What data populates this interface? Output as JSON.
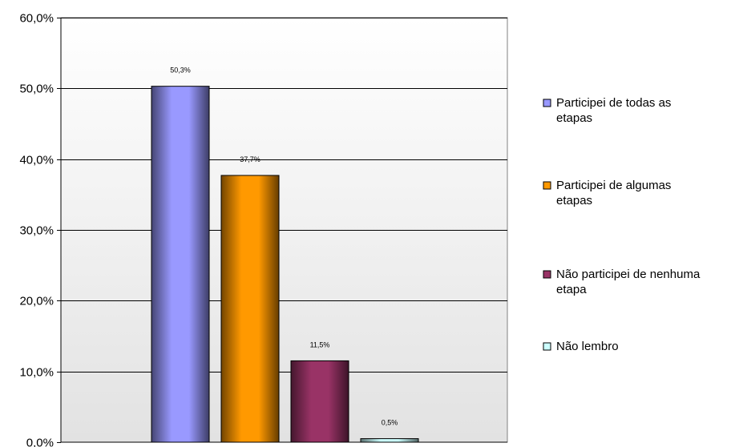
{
  "chart_data": {
    "type": "bar",
    "title": "",
    "xlabel": "",
    "ylabel": "",
    "ylim": [
      0,
      60
    ],
    "yticks": [
      0,
      10,
      20,
      30,
      40,
      50,
      60
    ],
    "ytick_labels": [
      "0,0%",
      "10,0%",
      "20,0%",
      "30,0%",
      "40,0%",
      "50,0%",
      "60,0%"
    ],
    "grid": true,
    "legend_position": "right",
    "series": [
      {
        "name": "Participei de todas as etapas",
        "legend_lines": [
          "Participei de todas as",
          "etapas"
        ],
        "value": 50.3,
        "label": "50,3%",
        "color": "#9999ff"
      },
      {
        "name": "Participei de algumas etapas",
        "legend_lines": [
          "Participei de algumas",
          "etapas"
        ],
        "value": 37.7,
        "label": "37,7%",
        "color": "#ff9900"
      },
      {
        "name": "Não participei de nenhuma etapa",
        "legend_lines": [
          "Não participei de nenhuma",
          "etapa"
        ],
        "value": 11.5,
        "label": "11,5%",
        "color": "#993366"
      },
      {
        "name": "Não lembro",
        "legend_lines": [
          "Não lembro"
        ],
        "value": 0.5,
        "label": "0,5%",
        "color": "#ccffff"
      }
    ]
  }
}
